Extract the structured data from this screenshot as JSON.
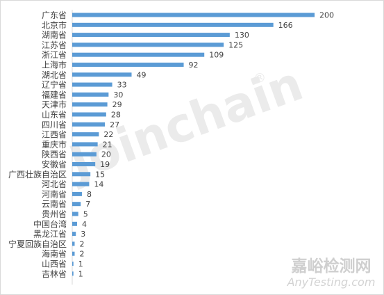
{
  "chart_data": {
    "type": "bar",
    "orientation": "horizontal",
    "categories": [
      "广东省",
      "北京市",
      "湖南省",
      "江苏省",
      "浙江省",
      "上海市",
      "湖北省",
      "辽宁省",
      "福建省",
      "天津市",
      "山东省",
      "四川省",
      "江西省",
      "重庆市",
      "陕西省",
      "安徽省",
      "广西壮族自治区",
      "河北省",
      "河南省",
      "云南省",
      "贵州省",
      "中国台湾",
      "黑龙江省",
      "宁夏回族自治区",
      "海南省",
      "山西省",
      "吉林省"
    ],
    "values": [
      200,
      166,
      130,
      125,
      109,
      92,
      49,
      33,
      30,
      29,
      28,
      27,
      22,
      21,
      20,
      19,
      15,
      14,
      8,
      7,
      5,
      4,
      3,
      2,
      2,
      1,
      1
    ],
    "xlim": [
      0,
      200
    ],
    "bar_color": "#5b9bd5",
    "data_labels": true,
    "grid": false,
    "legend": "none"
  },
  "watermarks": {
    "center": "Joinchain",
    "registered_mark": "®",
    "corner_cn": "嘉峪检测网",
    "corner_en": "AnyTesting.com"
  }
}
